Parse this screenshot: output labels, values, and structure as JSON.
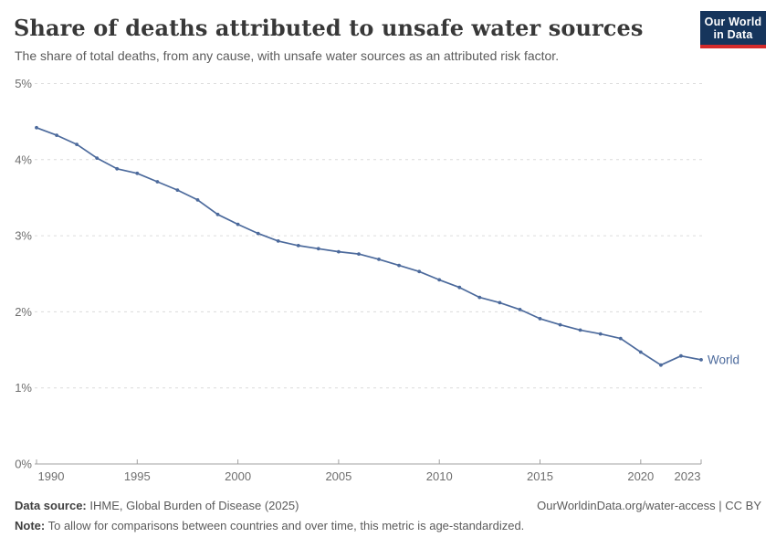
{
  "header": {
    "title": "Share of deaths attributed to unsafe water sources",
    "subtitle": "The share of total deaths, from any cause, with unsafe water sources as an attributed risk factor.",
    "logo": {
      "line1": "Our World",
      "line2": "in Data"
    }
  },
  "chart_data": {
    "type": "line",
    "title": "Share of deaths attributed to unsafe water sources",
    "x": [
      1990,
      1991,
      1992,
      1993,
      1994,
      1995,
      1996,
      1997,
      1998,
      1999,
      2000,
      2001,
      2002,
      2003,
      2004,
      2005,
      2006,
      2007,
      2008,
      2009,
      2010,
      2011,
      2012,
      2013,
      2014,
      2015,
      2016,
      2017,
      2018,
      2019,
      2020,
      2021,
      2022,
      2023
    ],
    "series": [
      {
        "name": "World",
        "color": "#4C6A9C",
        "values": [
          4.42,
          4.32,
          4.2,
          4.02,
          3.88,
          3.82,
          3.71,
          3.6,
          3.47,
          3.28,
          3.15,
          3.03,
          2.93,
          2.87,
          2.83,
          2.79,
          2.76,
          2.69,
          2.61,
          2.53,
          2.42,
          2.32,
          2.19,
          2.12,
          2.03,
          1.91,
          1.83,
          1.76,
          1.71,
          1.65,
          1.47,
          1.3,
          1.42,
          1.37
        ]
      }
    ],
    "xlabel": "",
    "ylabel": "",
    "ylim": [
      0,
      5
    ],
    "yticks": [
      0,
      1,
      2,
      3,
      4,
      5
    ],
    "ytick_labels": [
      "0%",
      "1%",
      "2%",
      "3%",
      "4%",
      "5%"
    ],
    "xticks": [
      1990,
      1995,
      2000,
      2005,
      2010,
      2015,
      2020,
      2023
    ],
    "grid": "horizontal-dashed",
    "legend_position": "end-of-line",
    "colors": {
      "line": "#4C6A9C",
      "grid": "#dcdcdc",
      "axis": "#a0a0a0",
      "tick_label": "#6e6e6e"
    }
  },
  "footer": {
    "datasource_label": "Data source:",
    "datasource_text": " IHME, Global Burden of Disease (2025)",
    "link_text": "OurWorldinData.org/water-access | CC BY",
    "note_label": "Note:",
    "note_text": " To allow for comparisons between countries and over time, this metric is age-standardized."
  }
}
